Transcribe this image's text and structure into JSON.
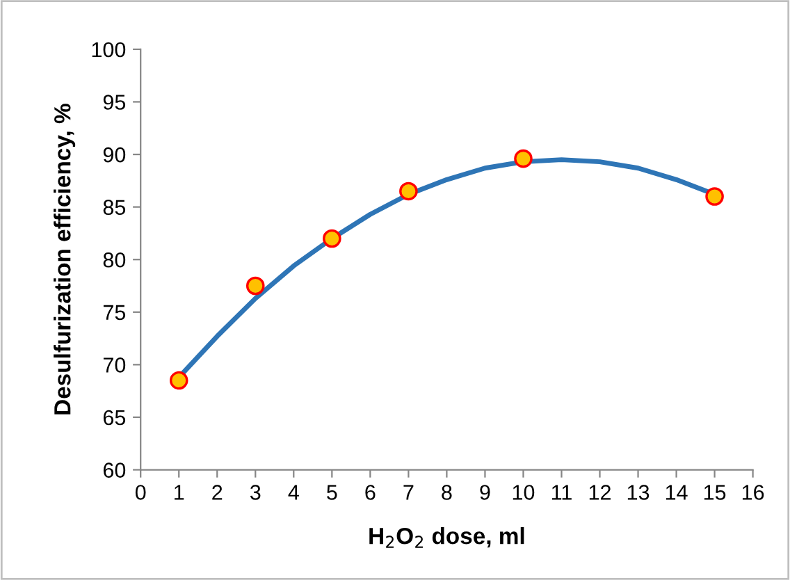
{
  "chart_data": {
    "type": "scatter",
    "xlabel": "H$_{2}$O$_{2}$ dose, ml",
    "ylabel": "Desulfurization efficiency, %",
    "xlim": [
      0,
      16
    ],
    "xticks": [
      0,
      1,
      2,
      3,
      4,
      5,
      6,
      7,
      8,
      9,
      10,
      11,
      12,
      13,
      14,
      15,
      16
    ],
    "ylim": [
      60,
      100
    ],
    "yticks": [
      60,
      65,
      70,
      75,
      80,
      85,
      90,
      95,
      100
    ],
    "grid": false,
    "legend": false,
    "marker": "circle",
    "series": [
      {
        "type": "line",
        "color": "#2e75b6",
        "line_style": "solid",
        "marker": "none",
        "x": [
          1,
          2,
          3,
          4,
          5,
          6,
          7,
          8,
          9,
          10,
          11,
          12,
          13,
          14,
          15
        ],
        "values": [
          68.8,
          72.7,
          76.3,
          79.4,
          82.0,
          84.3,
          86.2,
          87.6,
          88.7,
          89.3,
          89.5,
          89.3,
          88.7,
          87.6,
          86.2
        ]
      },
      {
        "color": "#ffc000",
        "x": [
          1,
          3,
          5,
          7,
          10,
          15
        ],
        "values": [
          68.5,
          77.5,
          82,
          86.5,
          89.6,
          86
        ]
      }
    ]
  }
}
